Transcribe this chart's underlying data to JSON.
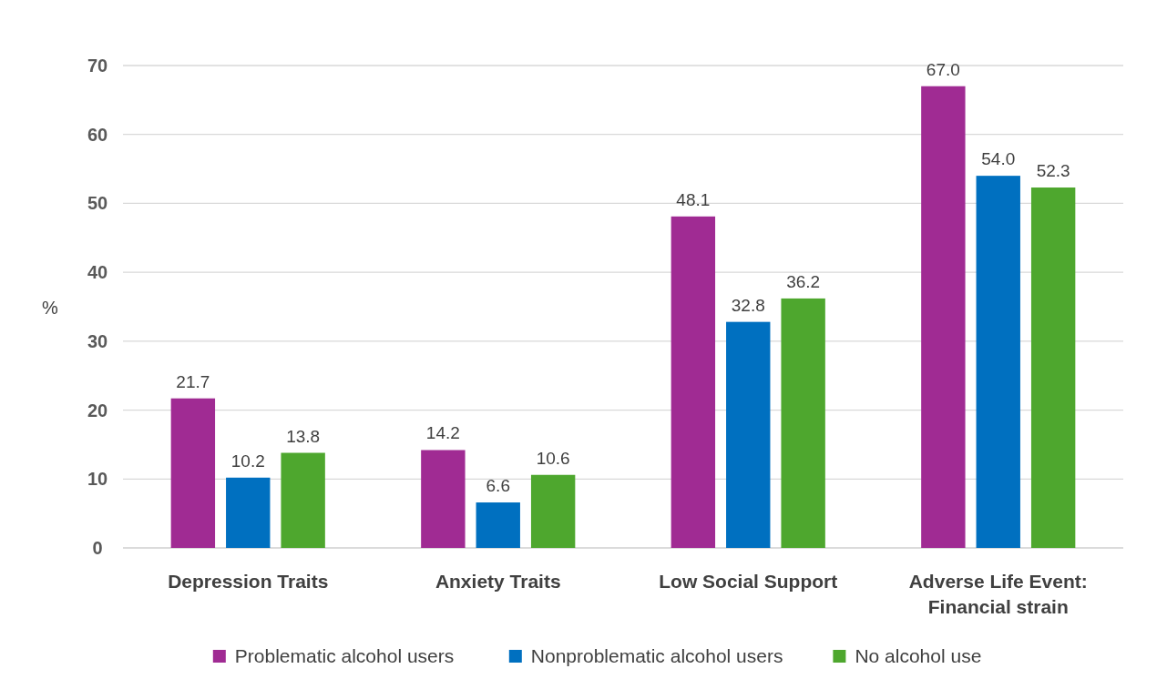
{
  "chart_data": {
    "type": "bar",
    "ylabel": "%",
    "categories": [
      "Depression Traits",
      "Anxiety Traits",
      "Low Social Support",
      "Adverse Life Event: Financial strain"
    ],
    "series": [
      {
        "name": "Problematic alcohol users",
        "color": "#a02b93",
        "values": [
          21.7,
          14.2,
          48.1,
          67.0
        ],
        "value_labels": [
          "21.7",
          "14.2",
          "48.1",
          "67.0"
        ]
      },
      {
        "name": "Nonproblematic alcohol users",
        "color": "#0070c0",
        "values": [
          10.2,
          6.6,
          32.8,
          54.0
        ],
        "value_labels": [
          "10.2",
          "6.6",
          "32.8",
          "54.0"
        ]
      },
      {
        "name": "No alcohol use",
        "color": "#4ea72e",
        "values": [
          13.8,
          10.6,
          36.2,
          52.3
        ],
        "value_labels": [
          "13.8",
          "10.6",
          "36.2",
          "52.3"
        ]
      }
    ],
    "ylim": [
      0,
      70
    ],
    "yticks": [
      0,
      10,
      20,
      30,
      40,
      50,
      60,
      70
    ],
    "grid": "y",
    "legend": "bottom"
  }
}
